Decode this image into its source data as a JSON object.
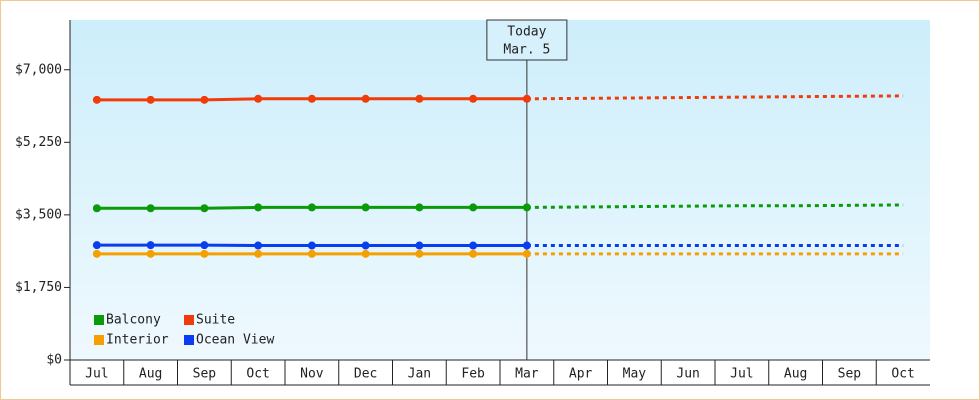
{
  "chart_data": {
    "type": "line",
    "categories": [
      "Jul",
      "Aug",
      "Sep",
      "Oct",
      "Nov",
      "Dec",
      "Jan",
      "Feb",
      "Mar",
      "Apr",
      "May",
      "Jun",
      "Jul",
      "Aug",
      "Sep",
      "Oct"
    ],
    "series": [
      {
        "name": "Balcony",
        "color": "#0a9a0a",
        "values": [
          3660,
          3660,
          3660,
          3680,
          3680,
          3680,
          3680,
          3680,
          3680,
          null,
          null,
          null,
          null,
          null,
          null,
          null
        ],
        "projected": [
          null,
          null,
          null,
          null,
          null,
          null,
          null,
          null,
          3680,
          3690,
          3700,
          3710,
          3720,
          3720,
          3730,
          3740
        ]
      },
      {
        "name": "Suite",
        "color": "#f03c0a",
        "values": [
          6275,
          6275,
          6275,
          6300,
          6300,
          6300,
          6300,
          6300,
          6300,
          null,
          null,
          null,
          null,
          null,
          null,
          null
        ],
        "projected": [
          null,
          null,
          null,
          null,
          null,
          null,
          null,
          null,
          6300,
          6310,
          6320,
          6330,
          6340,
          6350,
          6360,
          6370
        ]
      },
      {
        "name": "Interior",
        "color": "#f5a000",
        "values": [
          2560,
          2560,
          2560,
          2560,
          2560,
          2560,
          2560,
          2560,
          2560,
          null,
          null,
          null,
          null,
          null,
          null,
          null
        ],
        "projected": [
          null,
          null,
          null,
          null,
          null,
          null,
          null,
          null,
          2560,
          2560,
          2560,
          2560,
          2560,
          2560,
          2560,
          2560
        ]
      },
      {
        "name": "Ocean View",
        "color": "#0a3cf0",
        "values": [
          2770,
          2770,
          2770,
          2760,
          2760,
          2760,
          2760,
          2760,
          2760,
          null,
          null,
          null,
          null,
          null,
          null,
          null
        ],
        "projected": [
          null,
          null,
          null,
          null,
          null,
          null,
          null,
          null,
          2760,
          2760,
          2760,
          2760,
          2760,
          2760,
          2760,
          2760
        ]
      }
    ],
    "ylim": [
      0,
      8200
    ],
    "yticks": [
      {
        "value": 0,
        "label": "$0"
      },
      {
        "value": 1750,
        "label": "$1,750"
      },
      {
        "value": 3500,
        "label": "$3,500"
      },
      {
        "value": 5250,
        "label": "$5,250"
      },
      {
        "value": 7000,
        "label": "$7,000"
      }
    ],
    "annotation": [
      "Today",
      "Mar. 5"
    ],
    "legend": "lower left",
    "grid": false
  }
}
